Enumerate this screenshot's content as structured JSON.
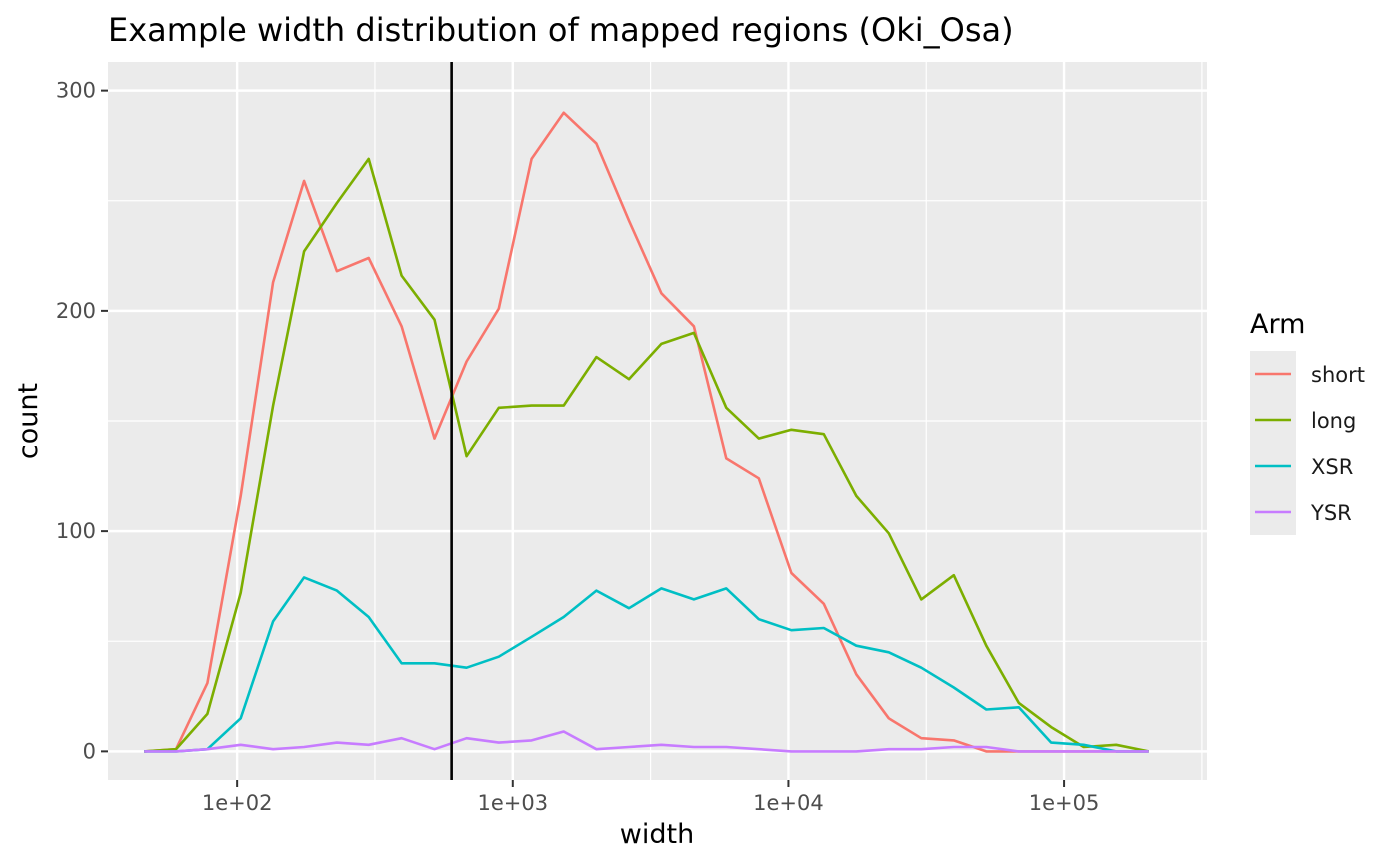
{
  "chart_data": {
    "type": "line",
    "title": "Example width distribution of mapped regions (Oki_Osa)",
    "xlabel": "width",
    "ylabel": "count",
    "x_scale": "log10",
    "xlim": [
      34,
      330000
    ],
    "ylim": [
      -13,
      313
    ],
    "x_ticks": [
      {
        "value": 100,
        "label": "1e+02"
      },
      {
        "value": 1000,
        "label": "1e+03"
      },
      {
        "value": 10000,
        "label": "1e+04"
      },
      {
        "value": 100000,
        "label": "1e+05"
      }
    ],
    "y_ticks": [
      {
        "value": 0,
        "label": "0"
      },
      {
        "value": 100,
        "label": "100"
      },
      {
        "value": 200,
        "label": "200"
      },
      {
        "value": 300,
        "label": "300"
      }
    ],
    "grid": true,
    "vline": {
      "x": 600
    },
    "legend": {
      "title": "Arm",
      "position": "right"
    },
    "x": [
      46,
      60,
      78,
      103,
      135,
      175,
      230,
      300,
      395,
      520,
      680,
      890,
      1170,
      1530,
      2010,
      2640,
      3460,
      4540,
      5950,
      7810,
      10250,
      13440,
      17630,
      23130,
      30350,
      39800,
      52200,
      68500,
      89800,
      117800,
      154500,
      202700
    ],
    "series": [
      {
        "name": "short",
        "color": "#F8766D",
        "values": [
          0,
          1,
          31,
          116,
          213,
          259,
          218,
          224,
          193,
          142,
          177,
          201,
          269,
          290,
          276,
          241,
          208,
          193,
          133,
          124,
          81,
          67,
          35,
          15,
          6,
          5,
          0,
          0,
          0,
          0,
          0,
          0
        ]
      },
      {
        "name": "long",
        "color": "#7CAE00",
        "values": [
          0,
          1,
          17,
          72,
          157,
          227,
          249,
          269,
          216,
          196,
          134,
          156,
          157,
          157,
          179,
          169,
          185,
          190,
          156,
          142,
          146,
          144,
          116,
          99,
          69,
          80,
          48,
          22,
          11,
          2,
          3,
          0
        ]
      },
      {
        "name": "XSR",
        "color": "#00BFC4",
        "values": [
          0,
          0,
          1,
          15,
          59,
          79,
          73,
          61,
          40,
          40,
          38,
          43,
          52,
          61,
          73,
          65,
          74,
          69,
          74,
          60,
          55,
          56,
          48,
          45,
          38,
          29,
          19,
          20,
          4,
          3,
          0,
          0
        ]
      },
      {
        "name": "YSR",
        "color": "#C77CFF",
        "values": [
          0,
          0,
          1,
          3,
          1,
          2,
          4,
          3,
          6,
          1,
          6,
          4,
          5,
          9,
          1,
          2,
          3,
          2,
          2,
          1,
          0,
          0,
          0,
          1,
          1,
          2,
          2,
          0,
          0,
          0,
          0,
          0
        ]
      }
    ]
  }
}
